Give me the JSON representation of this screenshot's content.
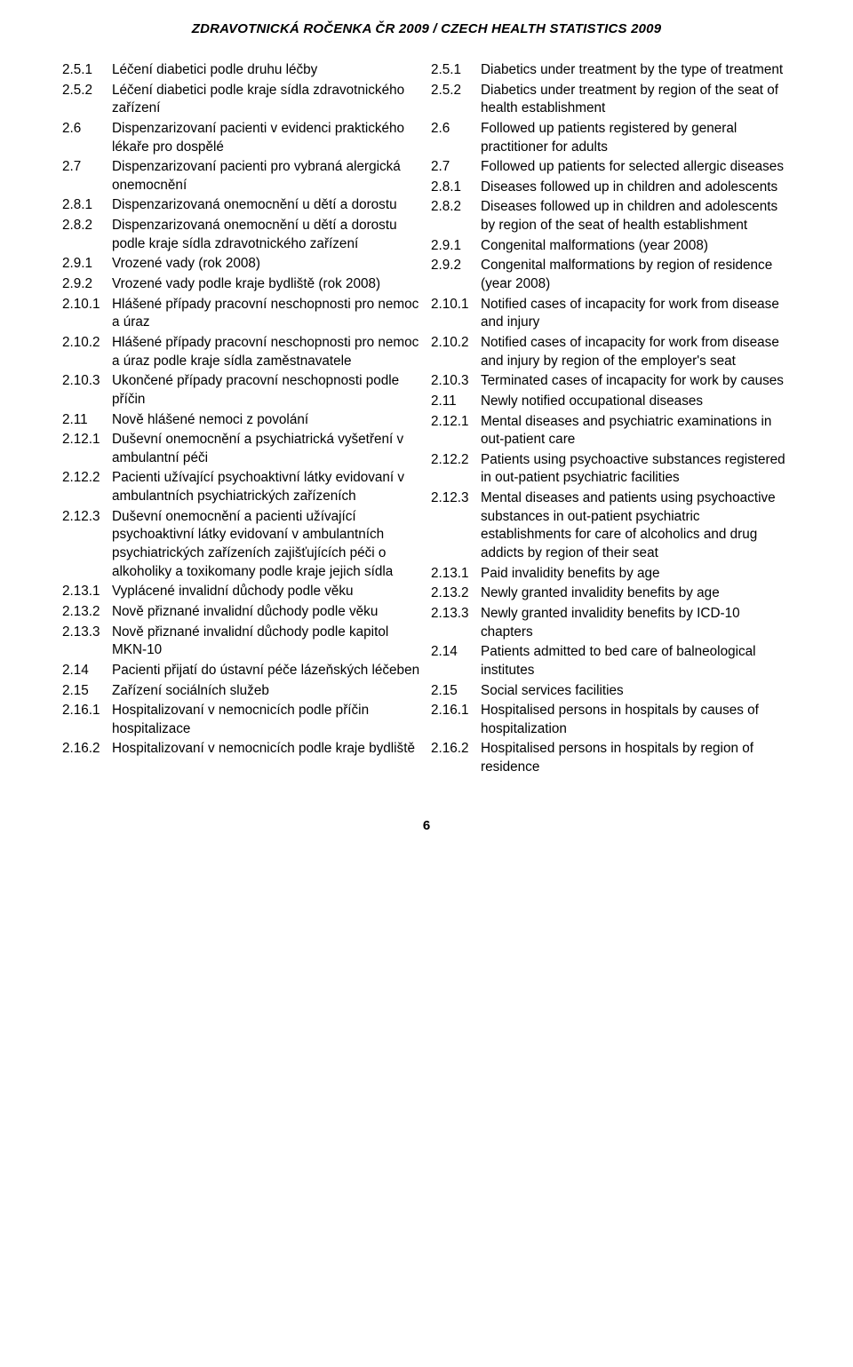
{
  "header": "ZDRAVOTNICKÁ ROČENKA ČR 2009  /  CZECH HEALTH STATISTICS 2009",
  "page_number": "6",
  "fonts": {
    "body_size_pt": 11,
    "header_size_pt": 11
  },
  "colors": {
    "text": "#000000",
    "background": "#ffffff"
  },
  "left": [
    {
      "num": "2.5.1",
      "txt": "Léčení diabetici podle druhu léčby"
    },
    {
      "num": "2.5.2",
      "txt": "Léčení diabetici podle kraje sídla zdravotnického zařízení"
    },
    {
      "num": "2.6",
      "txt": "Dispenzarizovaní pacienti v evidenci praktického lékaře pro dospělé"
    },
    {
      "num": "2.7",
      "txt": "Dispenzarizovaní pacienti pro vybraná alergická onemocnění"
    },
    {
      "num": "2.8.1",
      "txt": "Dispenzarizovaná onemocnění u dětí a dorostu"
    },
    {
      "num": "2.8.2",
      "txt": "Dispenzarizovaná onemocnění u dětí a dorostu podle kraje sídla zdravotnického zařízení"
    },
    {
      "num": "2.9.1",
      "txt": "Vrozené vady (rok 2008)"
    },
    {
      "num": "2.9.2",
      "txt": "Vrozené vady podle kraje bydliště (rok 2008)"
    },
    {
      "num": "2.10.1",
      "txt": "Hlášené případy pracovní neschopnosti pro nemoc a úraz"
    },
    {
      "num": "2.10.2",
      "txt": "Hlášené případy pracovní neschopnosti pro nemoc a úraz podle kraje sídla zaměstnavatele"
    },
    {
      "num": "2.10.3",
      "txt": "Ukončené případy pracovní neschopnosti podle příčin"
    },
    {
      "num": "2.11",
      "txt": "Nově hlášené nemoci z povolání"
    },
    {
      "num": "2.12.1",
      "txt": "Duševní onemocnění a psychiatrická vyšetření v ambulantní péči"
    },
    {
      "num": "2.12.2",
      "txt": "Pacienti užívající psychoaktivní látky evidovaní v ambulantních psychiatrických zařízeních"
    },
    {
      "num": "2.12.3",
      "txt": "Duševní onemocnění a pacienti užívající psychoaktivní látky evidovaní v ambu­lantních psychiatrických zařízeních zajišťujících péči o alkoholiky a toxiko­many podle kraje jejich sídla"
    },
    {
      "num": "2.13.1",
      "txt": "Vyplácené invalidní důchody podle věku"
    },
    {
      "num": "2.13.2",
      "txt": "Nově přiznané invalidní důchody podle věku"
    },
    {
      "num": "2.13.3",
      "txt": "Nově přiznané invalidní důchody podle kapitol MKN-10"
    },
    {
      "num": "2.14",
      "txt": "Pacienti přijatí do ústavní péče lázeňských léčeben"
    },
    {
      "num": "2.15",
      "txt": "Zařízení sociálních služeb"
    },
    {
      "num": "2.16.1",
      "txt": "Hospitalizovaní v nemocnicích podle příčin hospitalizace"
    },
    {
      "num": "2.16.2",
      "txt": "Hospitalizovaní v nemocnicích podle kraje bydliště"
    }
  ],
  "right": [
    {
      "num": "2.5.1",
      "txt": "Diabetics under treatment by the type of treatment"
    },
    {
      "num": "2.5.2",
      "txt": "Diabetics under treatment by region of the seat of health establishment"
    },
    {
      "num": "2.6",
      "txt": "Followed up patients registered by general practitioner for adults"
    },
    {
      "num": "2.7",
      "txt": "Followed up patients for selected allergic diseases"
    },
    {
      "num": "2.8.1",
      "txt": "Diseases followed up in children and adolescents"
    },
    {
      "num": "2.8.2",
      "txt": "Diseases followed up in children and adolescents by region of the seat of health establishment"
    },
    {
      "num": "2.9.1",
      "txt": "Congenital malformations (year 2008)"
    },
    {
      "num": "2.9.2",
      "txt": "Congenital malformations by region of residence (year 2008)"
    },
    {
      "num": "2.10.1",
      "txt": "Notified cases of incapacity for work from disease and injury"
    },
    {
      "num": "2.10.2",
      "txt": "Notified cases of incapacity for work from disease and injury by region of the employer's seat"
    },
    {
      "num": "2.10.3",
      "txt": "Terminated cases of incapacity for work by causes"
    },
    {
      "num": "2.11",
      "txt": "Newly notified occupational diseases"
    },
    {
      "num": "2.12.1",
      "txt": "Mental diseases and psychiatric examinations in out-patient care"
    },
    {
      "num": "2.12.2",
      "txt": "Patients using psychoactive substances registered in out-patient psychiatric facilities"
    },
    {
      "num": "2.12.3",
      "txt": "Mental diseases and patients using psychoactive substances in out-patient psychiatric establishments for care of alcoholics and drug addicts by region of their seat"
    },
    {
      "num": "2.13.1",
      "txt": "Paid invalidity benefits by age"
    },
    {
      "num": "2.13.2",
      "txt": "Newly granted invalidity benefits by age"
    },
    {
      "num": "2.13.3",
      "txt": "Newly granted invalidity benefits by ICD-10 chapters"
    },
    {
      "num": "2.14",
      "txt": "Patients admitted to bed care of balneological institutes"
    },
    {
      "num": "2.15",
      "txt": "Social services facilities"
    },
    {
      "num": "2.16.1",
      "txt": "Hospitalised persons in hospitals by causes of hospitalization"
    },
    {
      "num": "2.16.2",
      "txt": "Hospitalised persons in hospitals by region of residence"
    }
  ]
}
